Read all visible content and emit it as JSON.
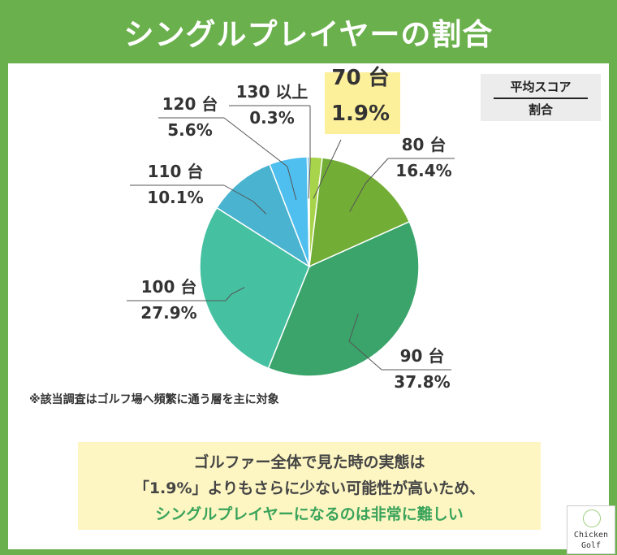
{
  "title": "シングルプレイヤーの割合",
  "legend": {
    "line1": "平均スコア",
    "line2": "割合"
  },
  "note": "※該当調査はゴルフ場へ頻繁に通う層を主に対象",
  "message": {
    "line1": "ゴルファー全体で見た時の実態は",
    "line2": "「1.9%」よりもさらに少ない可能性が高いため、",
    "line3": "シングルプレイヤーになるのは非常に難しい"
  },
  "logo": {
    "line1": "Chicken",
    "line2": "Golf"
  },
  "colors": {
    "frame": "#6ab04c",
    "highlight": "#fdf09a",
    "message_accent": "#3aa35a"
  },
  "chart_data": {
    "type": "pie",
    "title": "シングルプレイヤーの割合",
    "start_angle_deg": 0,
    "direction": "clockwise",
    "slices": [
      {
        "label": "70 台",
        "value": 1.9,
        "display": "1.9%",
        "color": "#a8d44c",
        "highlight": true
      },
      {
        "label": "80 台",
        "value": 16.4,
        "display": "16.4%",
        "color": "#72ad35"
      },
      {
        "label": "90 台",
        "value": 37.8,
        "display": "37.8%",
        "color": "#3aa46a"
      },
      {
        "label": "100 台",
        "value": 27.9,
        "display": "27.9%",
        "color": "#45c1a2"
      },
      {
        "label": "110 台",
        "value": 10.1,
        "display": "10.1%",
        "color": "#4ab3cf"
      },
      {
        "label": "120 台",
        "value": 5.6,
        "display": "5.6%",
        "color": "#4fbfef"
      },
      {
        "label": "130 以上",
        "value": 0.3,
        "display": "0.3%",
        "color": "#3aaee6"
      }
    ]
  }
}
